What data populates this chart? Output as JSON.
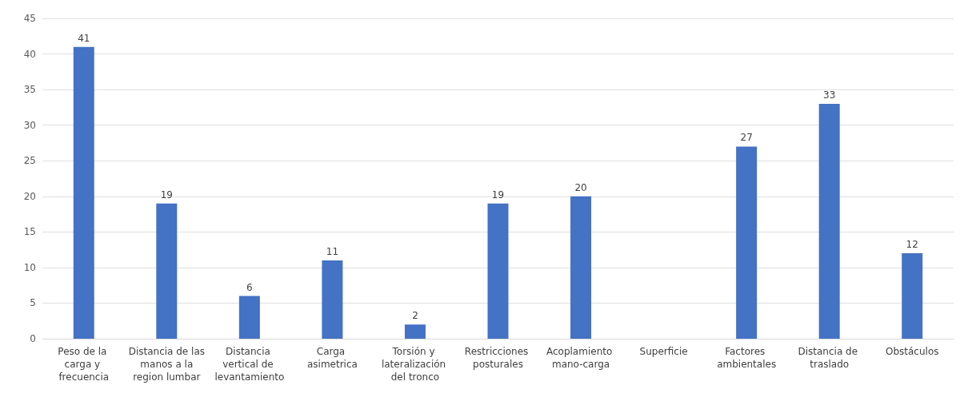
{
  "chart_data": {
    "type": "bar",
    "categories": [
      "Peso de la carga y frecuencia",
      "Distancia de las manos a la region lumbar",
      "Distancia vertical de levantamiento",
      "Carga asimetrica",
      "Torsión y lateralización del tronco",
      "Restricciones posturales",
      "Acoplamiento mano-carga",
      "Superficie",
      "Factores ambientales",
      "Distancia de traslado",
      "Obstáculos"
    ],
    "values": [
      41,
      19,
      6,
      11,
      2,
      19,
      20,
      null,
      27,
      33,
      12
    ],
    "color": "#4472c4",
    "ylim": [
      0,
      45
    ],
    "yticks": [
      0,
      5,
      10,
      15,
      20,
      25,
      30,
      35,
      40,
      45
    ],
    "grid": "y",
    "data_labels": true
  }
}
